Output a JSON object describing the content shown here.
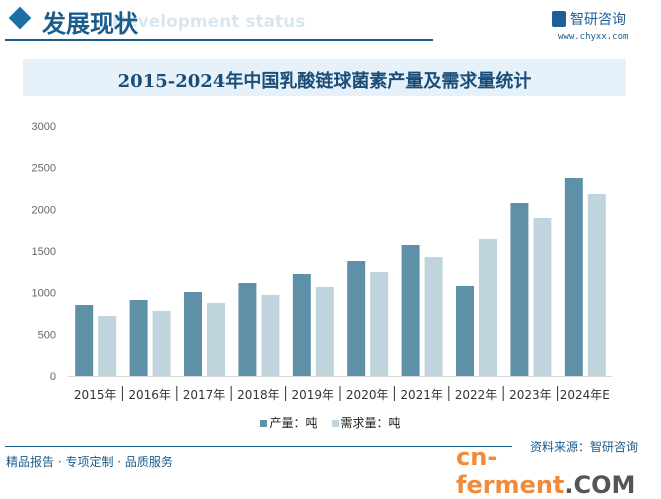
{
  "header": {
    "title": "发展现状",
    "subtitle": "Development status",
    "logo_text": "智研咨询",
    "url": "www.chyxx.com"
  },
  "footer": {
    "source": "资料来源：智研咨询",
    "slogan": "精品报告 · 专项定制 · 品质服务",
    "brand_main": "cn-ferment",
    "brand_suffix": ".COM"
  },
  "colors": {
    "production": "#5e91a8",
    "demand": "#c0d4dd"
  },
  "chart_data": {
    "type": "bar",
    "title": "2015-2024年中国乳酸链球菌素产量及需求量统计",
    "categories": [
      "2015年",
      "2016年",
      "2017年",
      "2018年",
      "2019年",
      "2020年",
      "2021年",
      "2022年",
      "2023年",
      "2024年E"
    ],
    "series": [
      {
        "name": "产量：吨",
        "values": [
          852,
          912,
          1008,
          1116,
          1224,
          1380,
          1572,
          1080,
          2076,
          2376
        ]
      },
      {
        "name": "需求量：吨",
        "values": [
          720,
          780,
          876,
          972,
          1068,
          1248,
          1428,
          1644,
          1896,
          2184
        ]
      }
    ],
    "yticks": [
      0,
      500,
      1000,
      1500,
      2000,
      2500,
      3000
    ],
    "ylim": [
      0,
      3000
    ],
    "grid": false,
    "legend": "bottom"
  }
}
